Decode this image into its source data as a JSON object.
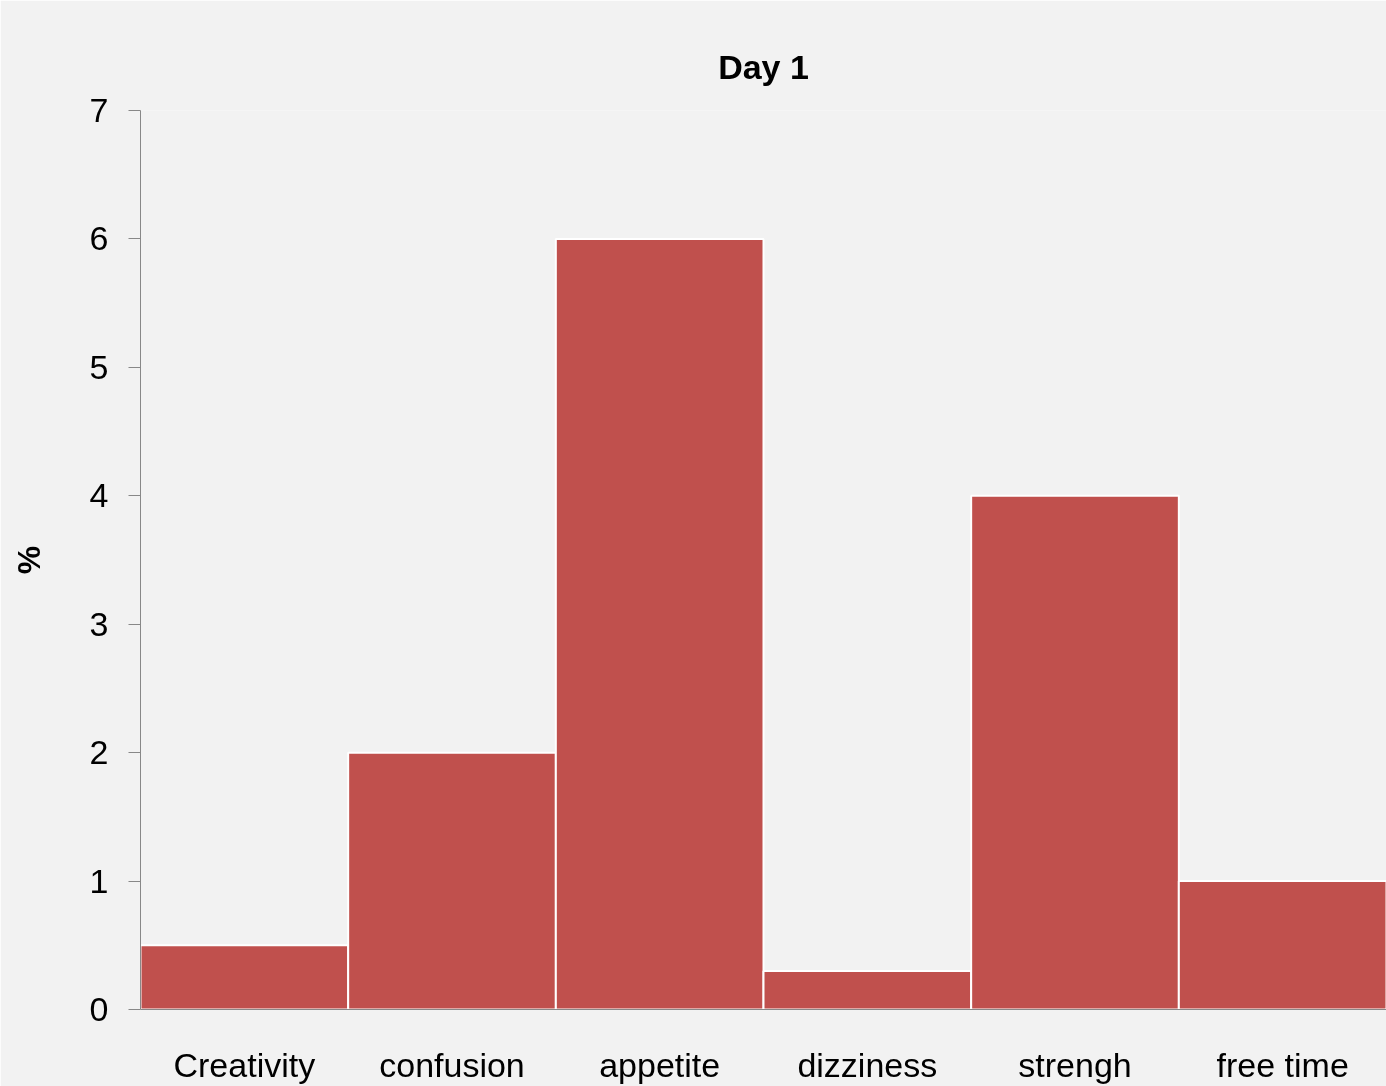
{
  "chart_data": {
    "type": "bar",
    "title": "Day 1",
    "ylabel": "%",
    "categories": [
      "Creativity",
      "confusion",
      "appetite",
      "dizziness",
      "strengh",
      "free time"
    ],
    "values": [
      0.5,
      2,
      6,
      0.3,
      4,
      1
    ],
    "color": "#c0504d",
    "ylim": [
      0,
      7
    ],
    "yticks": [
      0,
      1,
      2,
      3,
      4,
      5,
      6,
      7
    ],
    "grid": false
  }
}
